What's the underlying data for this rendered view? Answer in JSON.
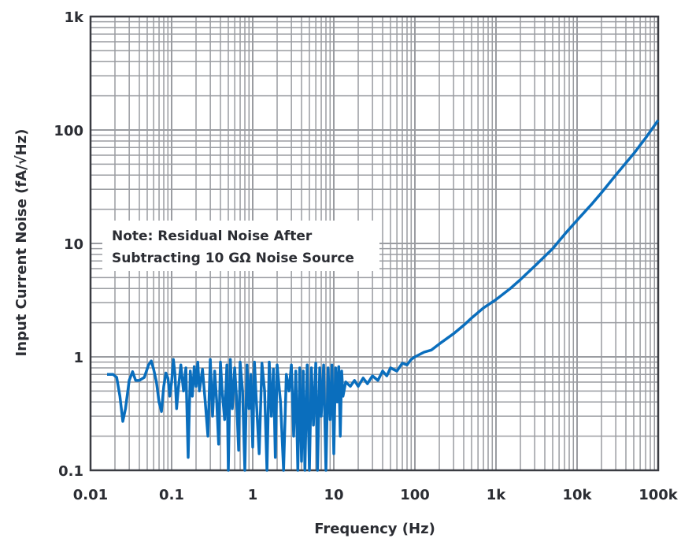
{
  "chart_data": {
    "type": "line",
    "xlabel": "Frequency (Hz)",
    "ylabel": "Input Current Noise (fA/√Hz)",
    "x_scale": "log",
    "y_scale": "log",
    "xlim": [
      0.01,
      100000
    ],
    "ylim": [
      0.1,
      1000
    ],
    "grid": true,
    "x_ticks": [
      0.01,
      0.1,
      1,
      10,
      100,
      1000,
      10000,
      100000
    ],
    "x_tick_labels": [
      "0.01",
      "0.1",
      "1",
      "10",
      "100",
      "1k",
      "10k",
      "100k"
    ],
    "y_ticks": [
      0.1,
      1,
      10,
      100,
      1000
    ],
    "y_tick_labels": [
      "0.1",
      "1",
      "10",
      "100",
      "1k"
    ],
    "annotation": [
      "Note: Residual Noise After",
      "Subtracting 10 GΩ Noise Source"
    ],
    "colors": {
      "series": "#0a6ebd",
      "grid": "#9a9ca1",
      "frame": "#3a3c42"
    },
    "series": [
      {
        "points": [
          [
            0.016,
            0.7
          ],
          [
            0.019,
            0.7
          ],
          [
            0.021,
            0.66
          ],
          [
            0.023,
            0.45
          ],
          [
            0.025,
            0.27
          ],
          [
            0.027,
            0.35
          ],
          [
            0.03,
            0.62
          ],
          [
            0.033,
            0.74
          ],
          [
            0.036,
            0.62
          ],
          [
            0.04,
            0.62
          ],
          [
            0.046,
            0.66
          ],
          [
            0.052,
            0.85
          ],
          [
            0.056,
            0.92
          ],
          [
            0.06,
            0.78
          ],
          [
            0.065,
            0.6
          ],
          [
            0.07,
            0.4
          ],
          [
            0.075,
            0.33
          ],
          [
            0.08,
            0.55
          ],
          [
            0.085,
            0.72
          ],
          [
            0.09,
            0.65
          ],
          [
            0.095,
            0.45
          ],
          [
            0.1,
            0.6
          ],
          [
            0.105,
            0.95
          ],
          [
            0.11,
            0.7
          ],
          [
            0.115,
            0.35
          ],
          [
            0.12,
            0.5
          ],
          [
            0.13,
            0.85
          ],
          [
            0.14,
            0.5
          ],
          [
            0.15,
            0.8
          ],
          [
            0.16,
            0.13
          ],
          [
            0.17,
            0.75
          ],
          [
            0.18,
            0.45
          ],
          [
            0.19,
            0.82
          ],
          [
            0.2,
            0.55
          ],
          [
            0.21,
            0.9
          ],
          [
            0.22,
            0.5
          ],
          [
            0.24,
            0.78
          ],
          [
            0.26,
            0.4
          ],
          [
            0.28,
            0.2
          ],
          [
            0.3,
            0.95
          ],
          [
            0.32,
            0.3
          ],
          [
            0.34,
            0.75
          ],
          [
            0.36,
            0.4
          ],
          [
            0.38,
            0.17
          ],
          [
            0.4,
            0.9
          ],
          [
            0.42,
            0.5
          ],
          [
            0.45,
            0.28
          ],
          [
            0.48,
            0.85
          ],
          [
            0.5,
            0.1
          ],
          [
            0.53,
            0.95
          ],
          [
            0.56,
            0.35
          ],
          [
            0.6,
            0.8
          ],
          [
            0.63,
            0.45
          ],
          [
            0.67,
            0.15
          ],
          [
            0.7,
            0.9
          ],
          [
            0.75,
            0.5
          ],
          [
            0.8,
            0.1
          ],
          [
            0.85,
            0.85
          ],
          [
            0.9,
            0.35
          ],
          [
            0.95,
            0.7
          ],
          [
            1.0,
            0.16
          ],
          [
            1.05,
            0.9
          ],
          [
            1.1,
            0.45
          ],
          [
            1.2,
            0.14
          ],
          [
            1.3,
            0.88
          ],
          [
            1.4,
            0.5
          ],
          [
            1.5,
            0.1
          ],
          [
            1.6,
            0.9
          ],
          [
            1.7,
            0.3
          ],
          [
            1.8,
            0.78
          ],
          [
            1.9,
            0.13
          ],
          [
            2.0,
            0.85
          ],
          [
            2.2,
            0.4
          ],
          [
            2.4,
            0.1
          ],
          [
            2.6,
            0.7
          ],
          [
            2.8,
            0.5
          ],
          [
            3.0,
            0.85
          ],
          [
            3.2,
            0.2
          ],
          [
            3.4,
            0.75
          ],
          [
            3.6,
            0.1
          ],
          [
            3.8,
            0.8
          ],
          [
            4.0,
            0.12
          ],
          [
            4.2,
            0.75
          ],
          [
            4.4,
            0.1
          ],
          [
            4.7,
            0.85
          ],
          [
            5.0,
            0.1
          ],
          [
            5.3,
            0.8
          ],
          [
            5.6,
            0.25
          ],
          [
            6.0,
            0.88
          ],
          [
            6.3,
            0.1
          ],
          [
            6.7,
            0.8
          ],
          [
            7.0,
            0.3
          ],
          [
            7.5,
            0.85
          ],
          [
            8.0,
            0.1
          ],
          [
            8.5,
            0.8
          ],
          [
            9.0,
            0.28
          ],
          [
            9.5,
            0.85
          ],
          [
            10,
            0.14
          ],
          [
            10.5,
            0.8
          ],
          [
            11,
            0.4
          ],
          [
            11.5,
            0.82
          ],
          [
            12,
            0.2
          ],
          [
            12.5,
            0.75
          ],
          [
            13,
            0.45
          ],
          [
            14,
            0.6
          ],
          [
            16,
            0.55
          ],
          [
            18,
            0.62
          ],
          [
            20,
            0.55
          ],
          [
            23,
            0.65
          ],
          [
            26,
            0.58
          ],
          [
            30,
            0.68
          ],
          [
            35,
            0.62
          ],
          [
            40,
            0.75
          ],
          [
            45,
            0.68
          ],
          [
            50,
            0.8
          ],
          [
            60,
            0.75
          ],
          [
            70,
            0.88
          ],
          [
            80,
            0.85
          ],
          [
            90,
            0.95
          ],
          [
            100,
            1.0
          ],
          [
            130,
            1.1
          ],
          [
            160,
            1.15
          ],
          [
            200,
            1.3
          ],
          [
            300,
            1.6
          ],
          [
            400,
            1.9
          ],
          [
            500,
            2.2
          ],
          [
            700,
            2.7
          ],
          [
            1000,
            3.2
          ],
          [
            1500,
            4.0
          ],
          [
            2000,
            4.8
          ],
          [
            3000,
            6.3
          ],
          [
            5000,
            9.0
          ],
          [
            7000,
            12
          ],
          [
            10000,
            16
          ],
          [
            15000,
            22
          ],
          [
            20000,
            28
          ],
          [
            30000,
            40
          ],
          [
            50000,
            62
          ],
          [
            70000,
            85
          ],
          [
            100000,
            122
          ]
        ]
      }
    ]
  }
}
